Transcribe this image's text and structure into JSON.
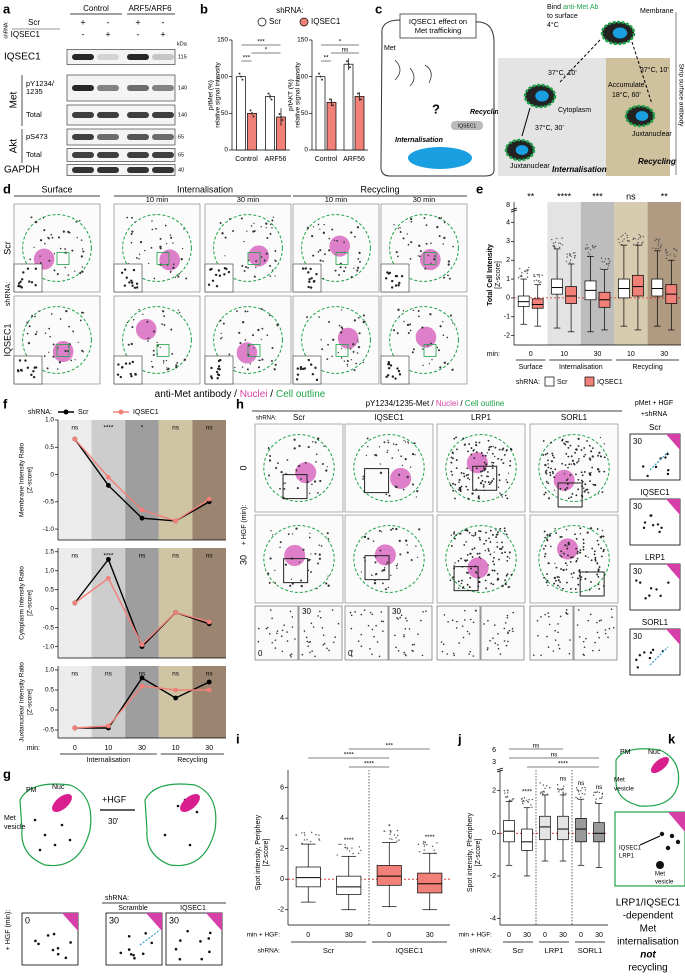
{
  "a": {
    "label": "a",
    "control": "Control",
    "arf": "ARF5/ARF6",
    "shrna": "shRNA:",
    "rows": [
      "Scr",
      "IQSEC1"
    ],
    "signs": [
      [
        "+",
        "-",
        "+",
        "-"
      ],
      [
        "-",
        "+",
        "-",
        "+"
      ]
    ],
    "kda": "kDa",
    "met": "Met",
    "akt": "Akt",
    "blots": [
      {
        "name": [
          "IQSEC1"
        ],
        "kda": 115
      },
      {
        "name": [
          "pY1234/",
          "1235"
        ],
        "kda": 140
      },
      {
        "name": [
          "Total"
        ],
        "kda": 140
      },
      {
        "name": [
          "pS473"
        ],
        "kda": 65
      },
      {
        "name": [
          "Total"
        ],
        "kda": 65
      },
      {
        "name": [
          "GAPDH"
        ],
        "kda": 40
      }
    ]
  },
  "b": {
    "label": "b",
    "shrna": "shRNA:",
    "legend": [
      {
        "name": "Scr",
        "color": "#ffffff"
      },
      {
        "name": "IQSEC1",
        "color": "#f08078"
      }
    ],
    "charts": [
      {
        "type": "bar",
        "ylabel": [
          "p/tMet (%)",
          "relative signal intensity"
        ],
        "categories": [
          "Control",
          "ARF56"
        ],
        "series": [
          {
            "values": [
              100,
              73
            ],
            "errors": [
              1,
              3
            ]
          },
          {
            "values": [
              50,
              45
            ],
            "errors": [
              2,
              12
            ]
          }
        ],
        "ylim": [
          0,
          150
        ],
        "yticks": [
          0,
          50,
          100,
          150
        ],
        "significance": [
          "***",
          "*",
          "***"
        ]
      },
      {
        "type": "bar",
        "ylabel": [
          "p/tAKT (%)",
          "relative signal intensity"
        ],
        "categories": [
          "Control",
          "ARF56"
        ],
        "series": [
          {
            "values": [
              100,
              117
            ],
            "errors": [
              1,
              8
            ]
          },
          {
            "values": [
              65,
              73
            ],
            "errors": [
              5,
              6
            ]
          }
        ],
        "ylim": [
          0,
          150
        ],
        "yticks": [
          0,
          50,
          100,
          150
        ],
        "significance": [
          "*",
          "ns",
          "**"
        ]
      }
    ]
  },
  "c": {
    "label": "c",
    "title": [
      "IQSEC1 effect on",
      "Met trafficking"
    ],
    "met": "Met",
    "recycling": "Recycling",
    "question": "?",
    "iqsec1": "IQSEC1",
    "internalisation": "Internalisation",
    "bind": [
      "Bind ",
      "anti-Met Ab"
    ],
    "bind2": "to surface",
    "temp": "4°C",
    "membrane": "Membrane",
    "step1": "37°C, 10'",
    "cytoplasm": "Cytoplasm",
    "step2": "37°C, 30'",
    "juxtanuclear": "Juxtanuclear",
    "internalisation_box": "Internalisation",
    "step3": "37°C, 10'",
    "accumulate": "Accumulate",
    "step4": "18°C, 60'",
    "juxtanuclear2": "Juxtanuclear",
    "recycling_box": "Recycling",
    "strip": "Strip surface antibody"
  },
  "d": {
    "label": "d",
    "surface": "Surface",
    "internalisation": "Internalisation",
    "recycling": "Recycling",
    "times": [
      "10 min",
      "30 min",
      "10 min",
      "30 min"
    ],
    "rows": [
      "Scr",
      "IQSEC1"
    ],
    "shrna": "shRNA:",
    "caption": [
      "anti-Met antibody / ",
      "Nuclei",
      " / ",
      "Cell outline"
    ]
  },
  "e": {
    "label": "e",
    "type": "box",
    "ylabel": [
      "Total Cell Intensity",
      "[Z-score]"
    ],
    "ylim": [
      -2.5,
      4.4
    ],
    "yticks": [
      -2,
      -1,
      0,
      1,
      2,
      3,
      4
    ],
    "break_tick": 8,
    "min": "min:",
    "categories": [
      0,
      10,
      30,
      10,
      30
    ],
    "groups": [
      "Surface",
      "Internalisation",
      "Recycling"
    ],
    "significance": [
      "**",
      "****",
      "***",
      "ns",
      "**"
    ],
    "shrna": "shRNA:",
    "series": [
      {
        "name": "Scr",
        "color": "#ffffff",
        "boxes": [
          [
            -1.4,
            -0.45,
            -0.2,
            0.1,
            1.0
          ],
          [
            -1.6,
            0.2,
            0.55,
            1.0,
            2.6
          ],
          [
            -1.8,
            -0.1,
            0.4,
            0.9,
            2.2
          ],
          [
            -1.5,
            0.0,
            0.5,
            1.0,
            2.8
          ],
          [
            -1.5,
            0.1,
            0.5,
            1.0,
            2.5
          ]
        ]
      },
      {
        "name": "IQSEC1",
        "color": "#f08078",
        "boxes": [
          [
            -1.5,
            -0.55,
            -0.35,
            -0.05,
            0.7
          ],
          [
            -1.8,
            -0.3,
            0.1,
            0.6,
            1.8
          ],
          [
            -1.7,
            -0.5,
            -0.1,
            0.3,
            1.5
          ],
          [
            -1.7,
            0.1,
            0.6,
            1.2,
            2.8
          ],
          [
            -1.7,
            -0.3,
            0.2,
            0.7,
            2.0
          ]
        ]
      }
    ]
  },
  "f": {
    "label": "f",
    "shrna": "shRNA:",
    "legend": [
      {
        "name": "Scr",
        "color": "#000000"
      },
      {
        "name": "IQSEC1",
        "color": "#f08078"
      }
    ],
    "min": "min:",
    "categories": [
      0,
      10,
      30,
      10,
      30
    ],
    "groups": [
      "Internalisation",
      "Recycling"
    ],
    "charts": [
      {
        "type": "line",
        "ylabel": [
          "Membrane Intensity Ratio",
          "[Z-score]"
        ],
        "ylim": [
          -1.2,
          1.0
        ],
        "yticks": [
          {
            "value": 1,
            "label": "1.0"
          },
          0.5,
          0,
          -0.5,
          {
            "value": -1,
            "label": "-1.0"
          }
        ],
        "series": [
          {
            "values": [
              0.65,
              -0.2,
              -0.8,
              -0.85,
              -0.5
            ]
          },
          {
            "values": [
              0.65,
              -0.05,
              -0.65,
              -0.85,
              -0.45
            ]
          }
        ],
        "annotations": [
          "ns",
          "****",
          "*",
          "ns",
          "ns"
        ]
      },
      {
        "type": "line",
        "ylabel": [
          "Cytoplasm Intensity Ratio",
          "[Z-score]"
        ],
        "ylim": [
          -1.3,
          1.6
        ],
        "yticks": [
          1.5,
          {
            "value": 1,
            "label": "1.0"
          },
          0.5,
          0,
          -0.5,
          {
            "value": -1,
            "label": "-1.0"
          }
        ],
        "series": [
          {
            "values": [
              0.15,
              1.3,
              -1.0,
              -0.1,
              -0.4
            ]
          },
          {
            "values": [
              0.15,
              0.8,
              -0.95,
              -0.1,
              -0.35
            ]
          }
        ],
        "annotations": [
          "ns",
          "****",
          "ns",
          "ns",
          "ns"
        ]
      },
      {
        "type": "line",
        "ylabel": [
          "Juxtanuclear Intensity Ratio",
          "[Z-score]"
        ],
        "ylim": [
          -0.7,
          1.1
        ],
        "yticks": [
          {
            "value": 1,
            "label": "1.0"
          },
          0.5,
          0,
          -0.5
        ],
        "series": [
          {
            "values": [
              -0.45,
              -0.45,
              0.8,
              0.3,
              0.7
            ]
          },
          {
            "values": [
              -0.45,
              -0.4,
              0.6,
              0.5,
              0.5
            ]
          }
        ],
        "annotations": [
          "ns",
          "ns",
          "ns",
          "ns",
          "ns"
        ]
      }
    ]
  },
  "g": {
    "label": "g",
    "pm": "PM",
    "nuc": "Nuc",
    "met": [
      "Met",
      "vesicle"
    ],
    "hgf": "+HGF",
    "time": "30'",
    "hgf_min": "+ HGF (min):",
    "shrna": "shRNA:",
    "conditions": [
      "Scramble",
      "IQSEC1"
    ],
    "panels": [
      0,
      30,
      30
    ]
  },
  "h": {
    "label": "h",
    "title": [
      "pY1234/1235-Met / ",
      "Nuclei",
      " / ",
      "Cell outline"
    ],
    "shrna": "shRNA:",
    "columns": [
      "Scr",
      "IQSEC1",
      "LRP1",
      "SORL1"
    ],
    "rows": [
      0,
      30
    ],
    "hgf": "+ HGF (min):",
    "insets": [
      0,
      30,
      0,
      30
    ],
    "schematic": {
      "title": [
        "pMet + HGF",
        "+shRNA"
      ],
      "conditions": [
        "Scr",
        "IQSEC1",
        "LRP1",
        "SORL1"
      ],
      "time": [
        30,
        30,
        30,
        30
      ]
    }
  },
  "i": {
    "label": "i",
    "type": "box",
    "ylabel": [
      "Spot intensity, Periphery",
      "[Z-score]"
    ],
    "ylim": [
      -3,
      6.5
    ],
    "yticks": [
      -2,
      0,
      2,
      4,
      6
    ],
    "min": "min + HGF:",
    "shrna": "shRNA:",
    "groups": [
      "Scr",
      "IQSEC1"
    ],
    "categories": [
      0,
      30,
      0,
      30
    ],
    "colors": [
      "#ffffff",
      "#ffffff",
      "#f08078",
      "#f08078"
    ],
    "boxes": [
      [
        -1.5,
        -0.5,
        0.1,
        0.8,
        2.3
      ],
      [
        -2,
        -1,
        -0.5,
        0.2,
        1.5
      ],
      [
        -1.8,
        -0.4,
        0.2,
        0.9,
        2.4
      ],
      [
        -2,
        -0.9,
        -0.3,
        0.4,
        1.7
      ]
    ],
    "significance": [
      null,
      "****",
      "*",
      "****"
    ],
    "comparisons": [
      "***",
      "****",
      "****"
    ]
  },
  "j": {
    "label": "j",
    "type": "box",
    "ylabel": [
      "Spot intensity, Pheriphery",
      "[Z-score]"
    ],
    "ylim": [
      -4.3,
      2.5
    ],
    "yticks": [
      -4,
      -2,
      0,
      2
    ],
    "break_labels": [
      6,
      3
    ],
    "min": "min + HGF:",
    "shrna": "shRNA:",
    "groups": [
      "Scr",
      "LRP1",
      "SORL1"
    ],
    "categories": [
      0,
      30,
      0,
      30,
      0,
      30
    ],
    "colors": [
      "#ffffff",
      "#ffffff",
      "#e4e4e4",
      "#e4e4e4",
      "#9a9a9a",
      "#9a9a9a"
    ],
    "boxes": [
      [
        -1.5,
        -0.4,
        0.1,
        0.6,
        1.5
      ],
      [
        -2,
        -0.8,
        -0.4,
        0.2,
        1.2
      ],
      [
        -1.3,
        -0.3,
        0.3,
        0.8,
        1.8
      ],
      [
        -1.3,
        -0.3,
        0.2,
        0.8,
        1.8
      ],
      [
        -1.5,
        -0.4,
        0.2,
        0.7,
        1.6
      ],
      [
        -1.6,
        -0.4,
        0.0,
        0.5,
        1.4
      ]
    ],
    "significance": [
      null,
      "****",
      null,
      "ns",
      "ns",
      "ns"
    ],
    "comparisons": [
      "ns",
      "ns",
      "****"
    ]
  },
  "k": {
    "label": "k",
    "pm": "PM",
    "nuc": "Nuc",
    "met": [
      "Met",
      "vesicle"
    ],
    "proteins": [
      "IQSEC1",
      "LRP1"
    ],
    "met2": [
      "Met",
      "vesicle"
    ],
    "caption": [
      "LRP1/IQSEC1",
      "-dependent",
      "Met",
      "internalisation",
      "not",
      "recycling"
    ]
  }
}
